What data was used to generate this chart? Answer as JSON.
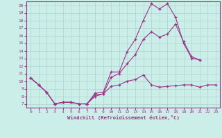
{
  "xlabel": "Windchill (Refroidissement éolien,°C)",
  "bg_color": "#cceee8",
  "grid_color": "#aad4ce",
  "line_color": "#993388",
  "xlim_min": -0.5,
  "xlim_max": 23.5,
  "ylim_min": 6.5,
  "ylim_max": 20.5,
  "xticks": [
    0,
    1,
    2,
    3,
    4,
    5,
    6,
    7,
    8,
    9,
    10,
    11,
    12,
    13,
    14,
    15,
    16,
    17,
    18,
    19,
    20,
    21,
    22,
    23
  ],
  "yticks": [
    7,
    8,
    9,
    10,
    11,
    12,
    13,
    14,
    15,
    16,
    17,
    18,
    19,
    20
  ],
  "line1_x": [
    0,
    1,
    2,
    3,
    4,
    5,
    6,
    7,
    8,
    9,
    10,
    11,
    12,
    13,
    14,
    15,
    16,
    17,
    18,
    19,
    20,
    21,
    22,
    23
  ],
  "line1_y": [
    10.4,
    9.5,
    8.5,
    7.0,
    7.2,
    7.2,
    7.0,
    7.0,
    8.4,
    8.5,
    11.2,
    11.2,
    13.9,
    15.5,
    18.0,
    20.2,
    19.5,
    20.2,
    18.4,
    15.0,
    13.0,
    12.8,
    null,
    null
  ],
  "line2_x": [
    0,
    1,
    2,
    3,
    4,
    5,
    6,
    7,
    8,
    9,
    10,
    11,
    12,
    13,
    14,
    15,
    16,
    17,
    18,
    19,
    20,
    21,
    22,
    23
  ],
  "line2_y": [
    10.4,
    9.5,
    8.5,
    7.0,
    7.2,
    7.2,
    7.0,
    7.0,
    8.2,
    8.3,
    10.5,
    11.0,
    12.3,
    13.5,
    15.5,
    16.5,
    15.8,
    16.2,
    17.5,
    15.2,
    13.2,
    12.8,
    null,
    null
  ],
  "line3_x": [
    0,
    1,
    2,
    3,
    4,
    5,
    6,
    7,
    8,
    9,
    10,
    11,
    12,
    13,
    14,
    15,
    16,
    17,
    18,
    19,
    20,
    21,
    22,
    23
  ],
  "line3_y": [
    10.4,
    9.5,
    8.5,
    7.0,
    7.2,
    7.2,
    7.0,
    7.0,
    8.0,
    8.3,
    9.3,
    9.5,
    10.0,
    10.2,
    10.8,
    9.5,
    9.2,
    9.3,
    9.4,
    9.5,
    9.5,
    9.2,
    9.5,
    9.5
  ],
  "tick_fontsize": 4.5,
  "xlabel_fontsize": 5.2
}
